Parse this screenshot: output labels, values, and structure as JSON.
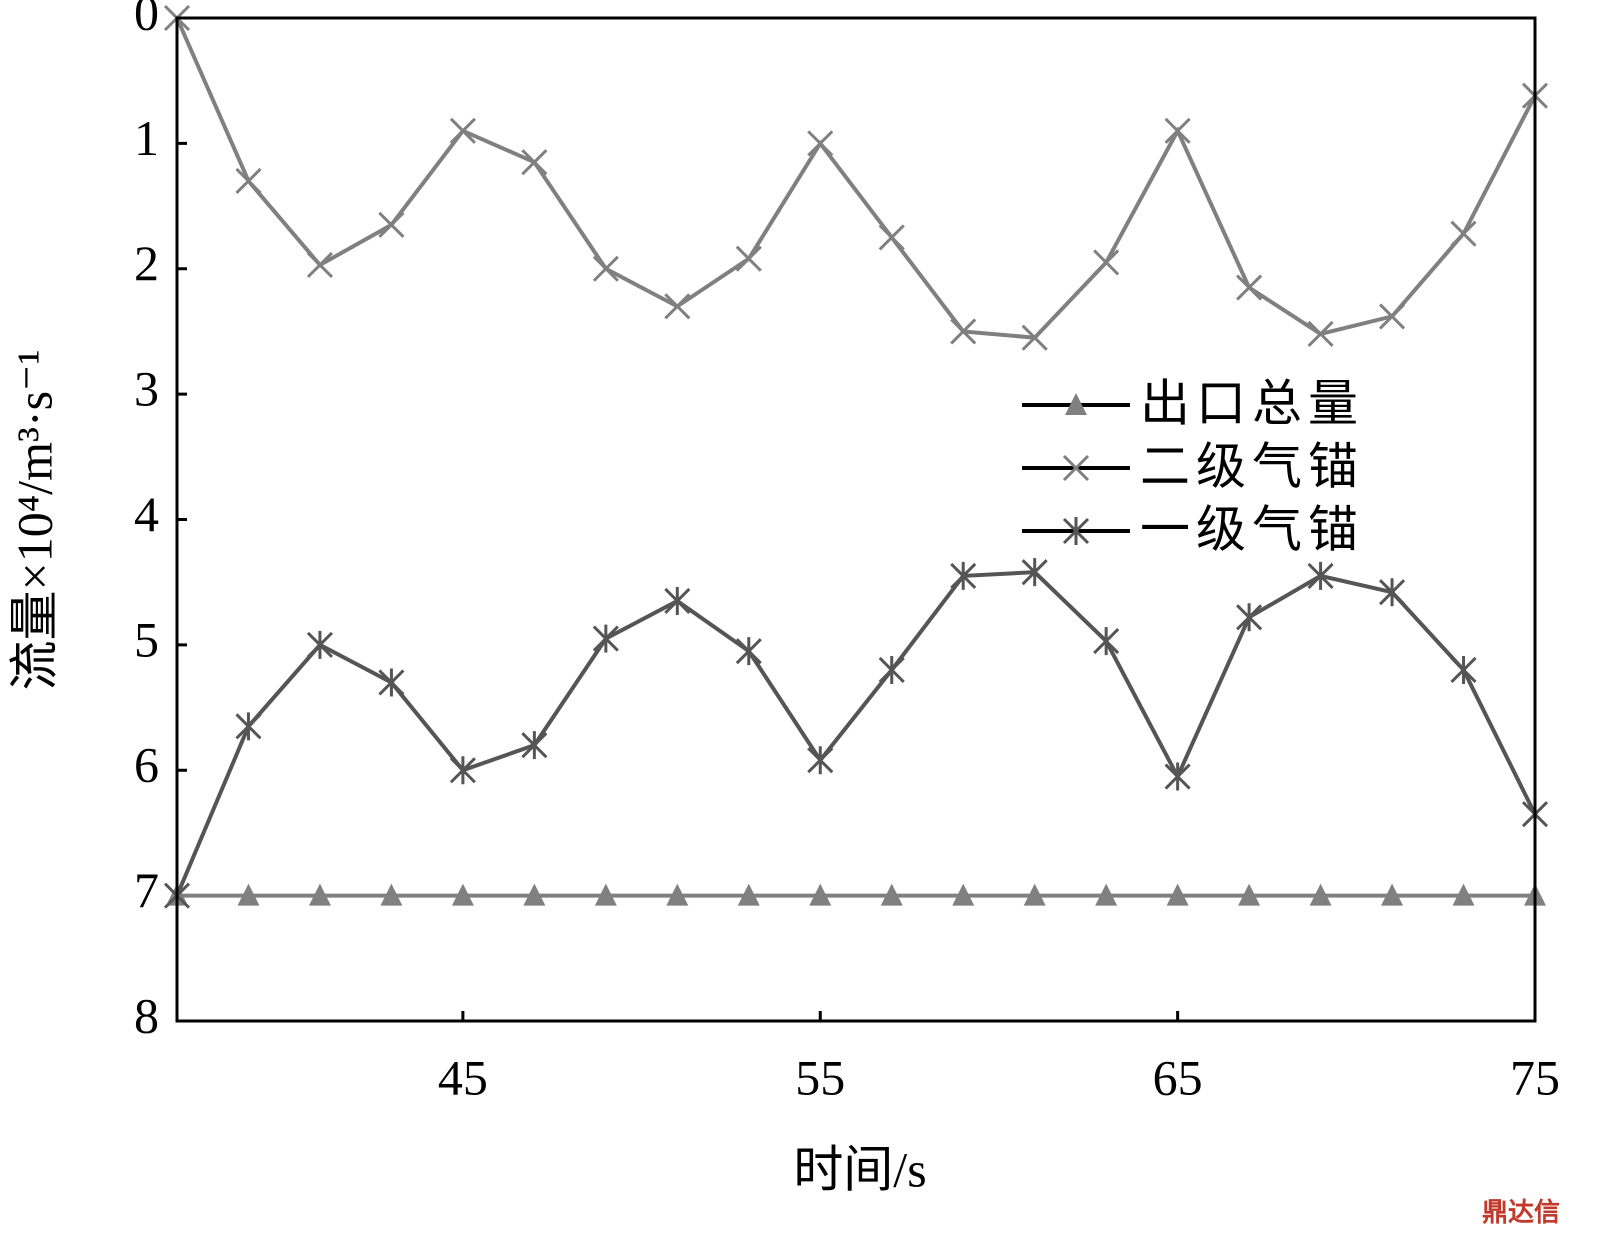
{
  "chart_data": {
    "type": "line",
    "x_label": "时间/s",
    "y_label": "流量×10⁴/m³·s⁻¹",
    "x": [
      37,
      39,
      41,
      43,
      45,
      47,
      49,
      51,
      53,
      55,
      57,
      59,
      61,
      63,
      65,
      67,
      69,
      71,
      73,
      75
    ],
    "xlim": [
      37,
      75
    ],
    "xticks": [
      45,
      55,
      65,
      75
    ],
    "ylim": [
      8,
      0
    ],
    "yticks": [
      0,
      1,
      2,
      3,
      4,
      5,
      6,
      7,
      8
    ],
    "legend": "right",
    "series": [
      {
        "name": "出口总量",
        "color": "#808080",
        "marker": "triangle",
        "values": [
          7,
          7,
          7,
          7,
          7,
          7,
          7,
          7,
          7,
          7,
          7,
          7,
          7,
          7,
          7,
          7,
          7,
          7,
          7,
          7
        ]
      },
      {
        "name": "二级气锚",
        "color": "#808080",
        "marker": "x",
        "values": [
          0,
          1.3,
          1.97,
          1.65,
          0.9,
          1.15,
          2.0,
          2.3,
          1.92,
          1.0,
          1.75,
          2.5,
          2.55,
          1.95,
          0.9,
          2.15,
          2.52,
          2.38,
          1.72,
          0.62
        ]
      },
      {
        "name": "一级气锚",
        "color": "#555555",
        "marker": "star",
        "values": [
          7.0,
          5.65,
          5.0,
          5.3,
          6.0,
          5.8,
          4.95,
          4.65,
          5.05,
          5.92,
          5.2,
          4.45,
          4.42,
          4.97,
          6.05,
          4.78,
          4.45,
          4.58,
          5.2,
          6.35
        ]
      }
    ],
    "watermark": "鼎达信"
  }
}
